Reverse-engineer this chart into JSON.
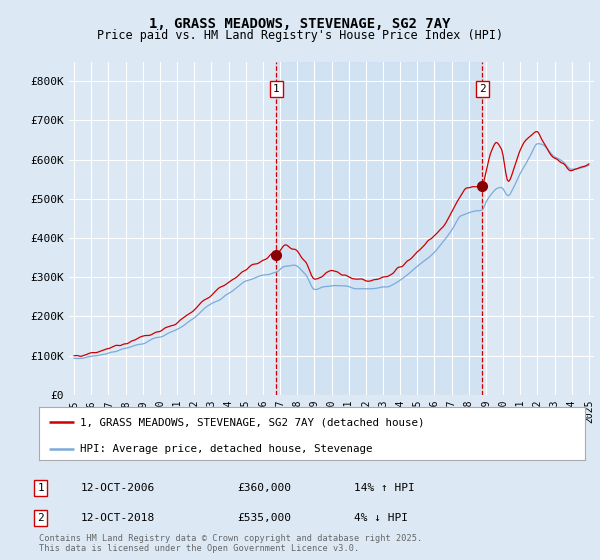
{
  "title": "1, GRASS MEADOWS, STEVENAGE, SG2 7AY",
  "subtitle": "Price paid vs. HM Land Registry's House Price Index (HPI)",
  "bg_color": "#dce9f5",
  "legend_label_red": "1, GRASS MEADOWS, STEVENAGE, SG2 7AY (detached house)",
  "legend_label_blue": "HPI: Average price, detached house, Stevenage",
  "annotation1_date": "12-OCT-2006",
  "annotation1_price": "£360,000",
  "annotation1_hpi": "14% ↑ HPI",
  "annotation1_year": 2006.79,
  "annotation2_date": "12-OCT-2018",
  "annotation2_price": "£535,000",
  "annotation2_hpi": "4% ↓ HPI",
  "annotation2_year": 2018.79,
  "copyright_text": "Contains HM Land Registry data © Crown copyright and database right 2025.\nThis data is licensed under the Open Government Licence v3.0.",
  "red_color": "#cc0000",
  "blue_color": "#7aabda",
  "vline_color": "#cc0000",
  "ylim_min": 0,
  "ylim_max": 850000,
  "yticks": [
    0,
    100000,
    200000,
    300000,
    400000,
    500000,
    600000,
    700000,
    800000
  ],
  "xlabel_years": [
    1995,
    1996,
    1997,
    1998,
    1999,
    2000,
    2001,
    2002,
    2003,
    2004,
    2005,
    2006,
    2007,
    2008,
    2009,
    2010,
    2011,
    2012,
    2013,
    2014,
    2015,
    2016,
    2017,
    2018,
    2019,
    2020,
    2021,
    2022,
    2023,
    2024,
    2025
  ]
}
